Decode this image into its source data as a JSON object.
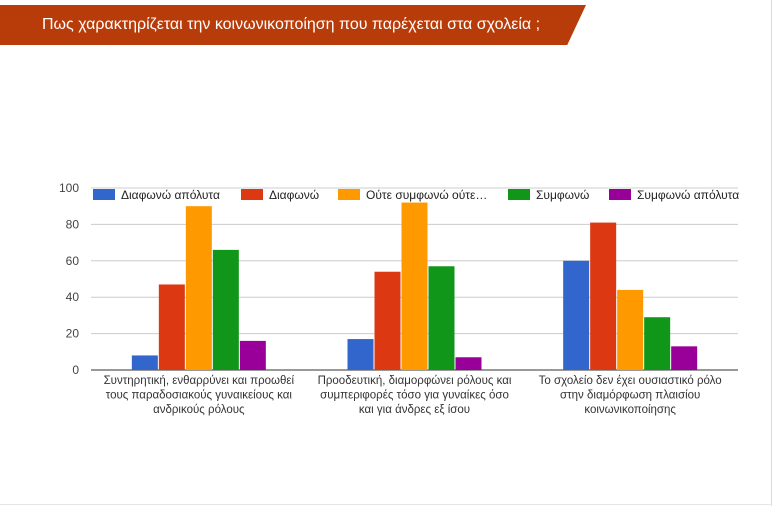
{
  "page": {
    "title": "Πως χαρακτηρίζεται την κοινωνικοποίηση που παρέχεται στα σχολεία ;",
    "title_color": "#b83c0a"
  },
  "chart_data": {
    "type": "bar",
    "title": "",
    "xlabel": "",
    "ylabel": "",
    "ylim": [
      0,
      100
    ],
    "yticks": [
      0,
      20,
      40,
      60,
      80,
      100
    ],
    "grid": true,
    "legend_position": "top",
    "categories": [
      [
        "Συντηρητική, ενθαρρύνει και προωθεί",
        "τους παραδοσιακούς γυναικείους και",
        "ανδρικούς ρόλους"
      ],
      [
        "Προοδευτική, διαμορφώνει ρόλους και",
        "συμπεριφορές τόσο για γυναίκες όσο",
        "και για άνδρες εξ ίσου"
      ],
      [
        "Το σχολείο δεν έχει ουσιαστικό ρόλο",
        "στην διαμόρφωση πλαισίου",
        "κοινωνικοποίησης"
      ]
    ],
    "series": [
      {
        "name": "Διαφωνώ απόλυτα",
        "color": "#3366cc",
        "values": [
          8,
          17,
          60
        ]
      },
      {
        "name": "Διαφωνώ",
        "color": "#dc3912",
        "values": [
          47,
          54,
          81
        ]
      },
      {
        "name": "Ούτε συμφωνώ ούτε…",
        "color": "#ff9900",
        "values": [
          90,
          92,
          44
        ]
      },
      {
        "name": "Συμφωνώ",
        "color": "#109618",
        "values": [
          66,
          57,
          29
        ]
      },
      {
        "name": "Συμφωνώ απόλυτα",
        "color": "#990099",
        "values": [
          16,
          7,
          13
        ]
      }
    ]
  }
}
